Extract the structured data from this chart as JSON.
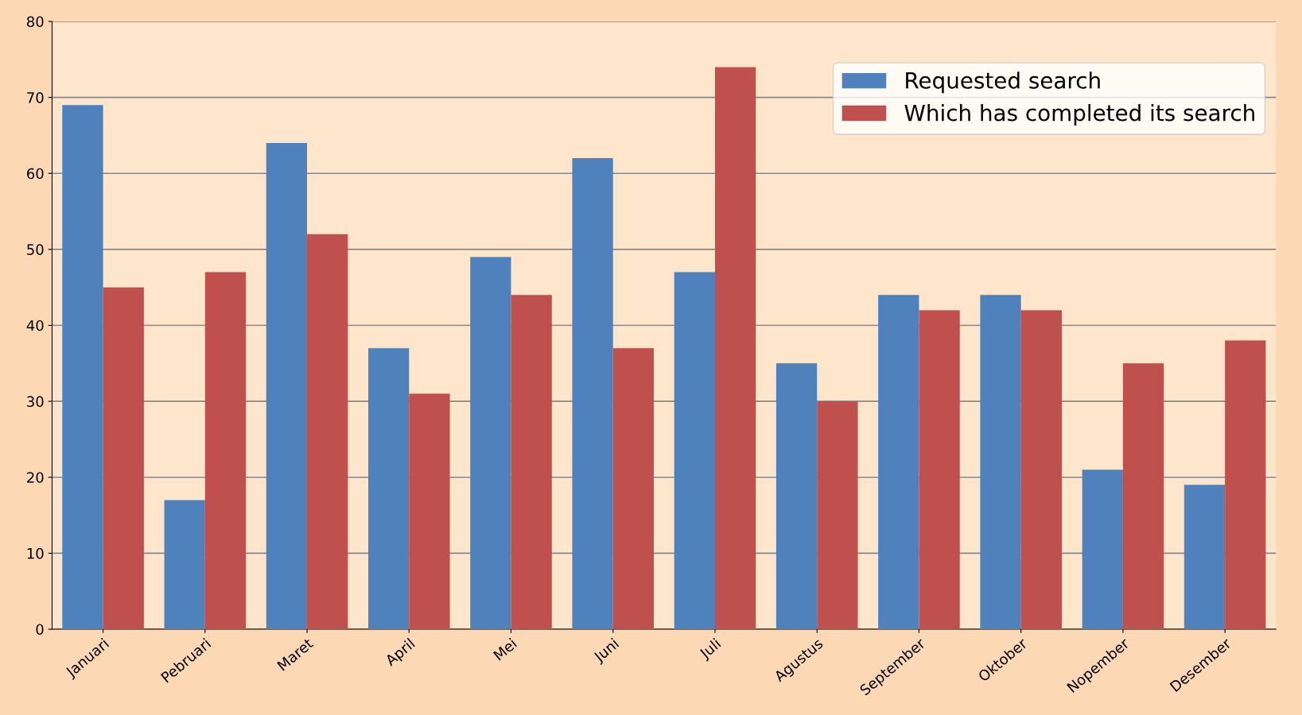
{
  "chart_data": {
    "type": "bar",
    "categories": [
      "Januari",
      "Pebruari",
      "Maret",
      "April",
      "Mei",
      "Juni",
      "Juli",
      "Agustus",
      "September",
      "Oktober",
      "Nopember",
      "Desember"
    ],
    "series": [
      {
        "name": "Requested search",
        "color": "#4f81bd",
        "values": [
          69,
          17,
          64,
          37,
          49,
          62,
          47,
          35,
          44,
          44,
          21,
          19
        ]
      },
      {
        "name": "Which has completed its search",
        "color": "#c0504d",
        "values": [
          45,
          47,
          52,
          31,
          44,
          37,
          74,
          30,
          42,
          42,
          35,
          38
        ]
      }
    ],
    "ylim": [
      0,
      80
    ],
    "yticks": [
      0,
      10,
      20,
      30,
      40,
      50,
      60,
      70,
      80
    ],
    "grid": "y",
    "legend": "top right"
  }
}
